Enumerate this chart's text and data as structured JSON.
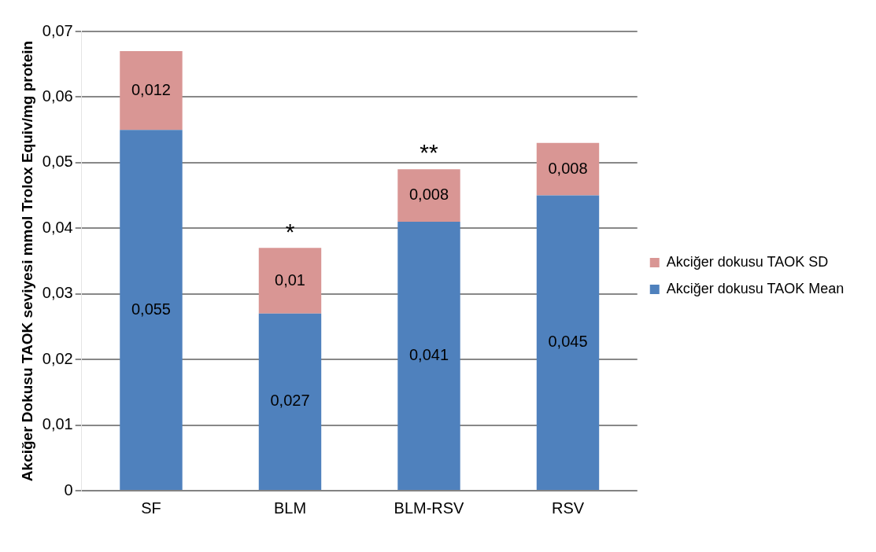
{
  "chart_data": {
    "type": "bar",
    "stacked": true,
    "ylabel": "Akciğer Dokusu TAOK seviyesi mmol Trolox Equiv/mg protein",
    "categories": [
      "SF",
      "BLM",
      "BLM-RSV",
      "RSV"
    ],
    "series": [
      {
        "name": "Akciğer dokusu TAOK Mean",
        "color": "#4f81bd",
        "values": [
          0.055,
          0.027,
          0.041,
          0.045
        ],
        "value_labels": [
          "0,055",
          "0,027",
          "0,041",
          "0,045"
        ]
      },
      {
        "name": "Akciğer dokusu TAOK SD",
        "color": "#d99694",
        "values": [
          0.012,
          0.01,
          0.008,
          0.008
        ],
        "value_labels": [
          "0,012",
          "0,01",
          "0,008",
          "0,008"
        ]
      }
    ],
    "ylim": [
      0,
      0.07
    ],
    "yticks": [
      0,
      {
        "value": 0.01,
        "label": "0,01"
      },
      {
        "value": 0.02,
        "label": "0,02"
      },
      {
        "value": 0.03,
        "label": "0,03"
      },
      {
        "value": 0.04,
        "label": "0,04"
      },
      {
        "value": 0.05,
        "label": "0,05"
      },
      {
        "value": 0.06,
        "label": "0,06"
      },
      {
        "value": 0.07,
        "label": "0,07"
      }
    ],
    "grid": "y",
    "legend": "right",
    "annotations": [
      {
        "text": "*",
        "x": "BLM",
        "y": 0.037
      },
      {
        "text": "**",
        "x": "BLM-RSV",
        "y": 0.049
      }
    ]
  }
}
